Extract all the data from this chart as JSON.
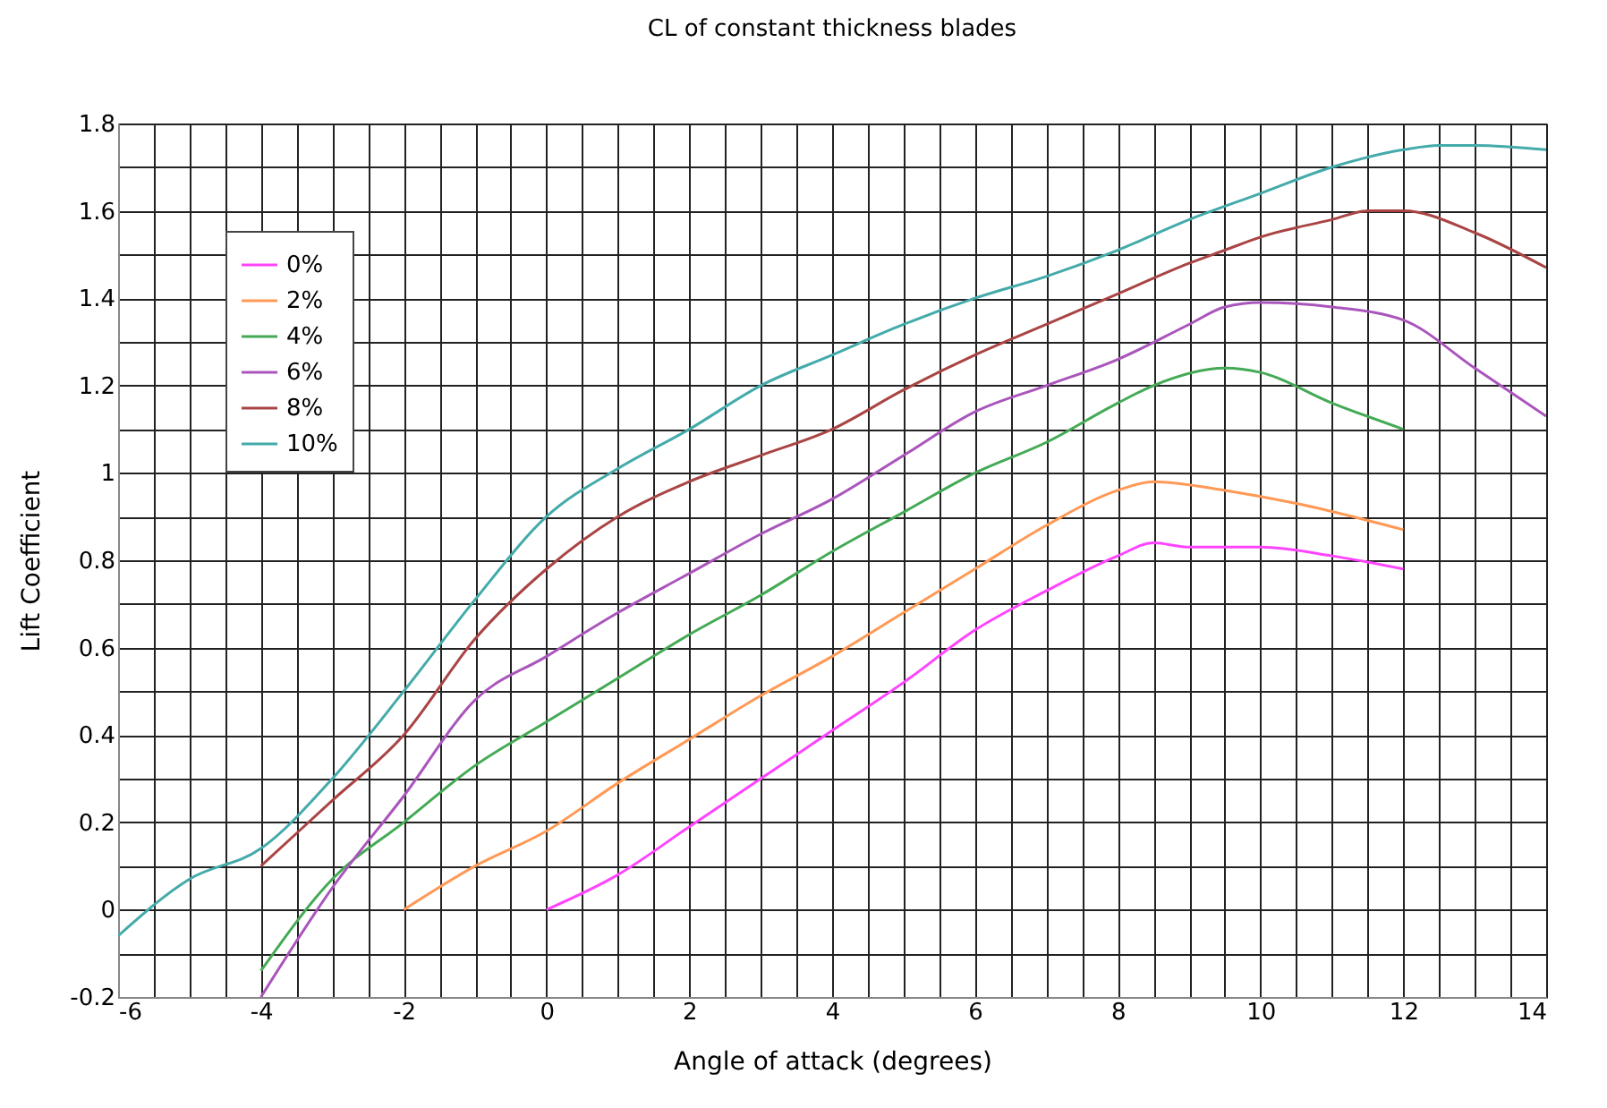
{
  "chart_data": {
    "type": "line",
    "title": "CL of constant thickness blades",
    "xlabel": "Angle of attack (degrees)",
    "ylabel": "Lift Coefficient",
    "xlim": [
      -6,
      14
    ],
    "ylim": [
      -0.2,
      1.8
    ],
    "xticks": [
      -6,
      {
        "value": -5.5,
        "label": null
      },
      {
        "value": -5,
        "label": null
      },
      {
        "value": -4.5,
        "label": null
      },
      -4,
      {
        "value": -3.5,
        "label": null
      },
      {
        "value": -3,
        "label": null
      },
      {
        "value": -2.5,
        "label": null
      },
      -2,
      {
        "value": -1.5,
        "label": null
      },
      {
        "value": -1,
        "label": null
      },
      {
        "value": -0.5,
        "label": null
      },
      0,
      {
        "value": 0.5,
        "label": null
      },
      {
        "value": 1,
        "label": null
      },
      {
        "value": 1.5,
        "label": null
      },
      2,
      {
        "value": 2.5,
        "label": null
      },
      {
        "value": 3,
        "label": null
      },
      {
        "value": 3.5,
        "label": null
      },
      4,
      {
        "value": 4.5,
        "label": null
      },
      {
        "value": 5,
        "label": null
      },
      {
        "value": 5.5,
        "label": null
      },
      6,
      {
        "value": 6.5,
        "label": null
      },
      {
        "value": 7,
        "label": null
      },
      {
        "value": 7.5,
        "label": null
      },
      8,
      {
        "value": 8.5,
        "label": null
      },
      {
        "value": 9,
        "label": null
      },
      {
        "value": 9.5,
        "label": null
      },
      10,
      {
        "value": 10.5,
        "label": null
      },
      {
        "value": 11,
        "label": null
      },
      {
        "value": 11.5,
        "label": null
      },
      12,
      {
        "value": 12.5,
        "label": null
      },
      {
        "value": 13,
        "label": null
      },
      {
        "value": 13.5,
        "label": null
      },
      14
    ],
    "yticks": [
      -0.2,
      {
        "value": -0.1,
        "label": null
      },
      0,
      {
        "value": 0.1,
        "label": null
      },
      0.2,
      {
        "value": 0.3,
        "label": null
      },
      0.4,
      {
        "value": 0.5,
        "label": null
      },
      0.6,
      {
        "value": 0.7,
        "label": null
      },
      0.8,
      {
        "value": 0.9,
        "label": null
      },
      1,
      {
        "value": 1.1,
        "label": null
      },
      1.2,
      {
        "value": 1.3,
        "label": null
      },
      1.4,
      {
        "value": 1.5,
        "label": null
      },
      1.6,
      {
        "value": 1.7,
        "label": null
      },
      1.8
    ],
    "grid": true,
    "legend": "top left",
    "series": [
      {
        "name": "0%",
        "color": "#ff44ff",
        "x": [
          0,
          1,
          2,
          3,
          4,
          5,
          6,
          7,
          8,
          8.5,
          9,
          10,
          11,
          12
        ],
        "values": [
          0,
          0.08,
          0.19,
          0.3,
          0.41,
          0.52,
          0.64,
          0.73,
          0.81,
          0.84,
          0.83,
          0.83,
          0.81,
          0.78
        ]
      },
      {
        "name": "2%",
        "color": "#ff9955",
        "x": [
          -2,
          -1,
          0,
          1,
          2,
          3,
          4,
          5,
          6,
          7,
          8,
          8.5,
          9.5,
          10.5,
          12
        ],
        "values": [
          0,
          0.1,
          0.18,
          0.29,
          0.39,
          0.49,
          0.58,
          0.68,
          0.78,
          0.88,
          0.96,
          0.98,
          0.96,
          0.93,
          0.87
        ]
      },
      {
        "name": "4%",
        "color": "#44aa55",
        "x": [
          -4,
          -3,
          -2,
          -1,
          0,
          1,
          2,
          3,
          4,
          5,
          6,
          7,
          8,
          8.5,
          9.5,
          10,
          11,
          12
        ],
        "values": [
          -0.14,
          0.07,
          0.2,
          0.33,
          0.43,
          0.53,
          0.63,
          0.72,
          0.82,
          0.91,
          1.0,
          1.07,
          1.16,
          1.2,
          1.24,
          1.23,
          1.16,
          1.1
        ]
      },
      {
        "name": "6%",
        "color": "#aa55bb",
        "x": [
          -4,
          -3,
          -2,
          -1,
          0,
          1,
          2,
          3,
          4,
          5,
          6,
          7,
          8,
          9,
          9.5,
          10,
          11,
          12,
          13,
          14
        ],
        "values": [
          -0.2,
          0.05,
          0.26,
          0.48,
          0.58,
          0.68,
          0.77,
          0.86,
          0.94,
          1.04,
          1.14,
          1.2,
          1.26,
          1.34,
          1.38,
          1.39,
          1.38,
          1.35,
          1.24,
          1.13
        ]
      },
      {
        "name": "8%",
        "color": "#aa4444",
        "x": [
          -4,
          -3,
          -2,
          -1,
          0,
          1,
          2,
          3,
          4,
          5,
          6,
          7,
          8,
          9,
          9.5,
          10,
          11,
          11.5,
          12,
          13,
          14
        ],
        "values": [
          0.1,
          0.25,
          0.4,
          0.62,
          0.78,
          0.9,
          0.98,
          1.04,
          1.1,
          1.19,
          1.27,
          1.34,
          1.41,
          1.48,
          1.51,
          1.54,
          1.58,
          1.6,
          1.6,
          1.55,
          1.47
        ]
      },
      {
        "name": "10%",
        "color": "#44aaaa",
        "x": [
          -6,
          -5,
          -4,
          -3,
          -2,
          -1,
          0,
          1,
          2,
          3,
          4,
          5,
          6,
          7,
          8,
          9,
          10,
          11,
          12,
          12.5,
          13,
          14
        ],
        "values": [
          -0.06,
          0.07,
          0.14,
          0.3,
          0.5,
          0.71,
          0.9,
          1.01,
          1.1,
          1.2,
          1.27,
          1.34,
          1.4,
          1.45,
          1.51,
          1.58,
          1.64,
          1.7,
          1.74,
          1.75,
          1.75,
          1.74
        ]
      }
    ]
  }
}
